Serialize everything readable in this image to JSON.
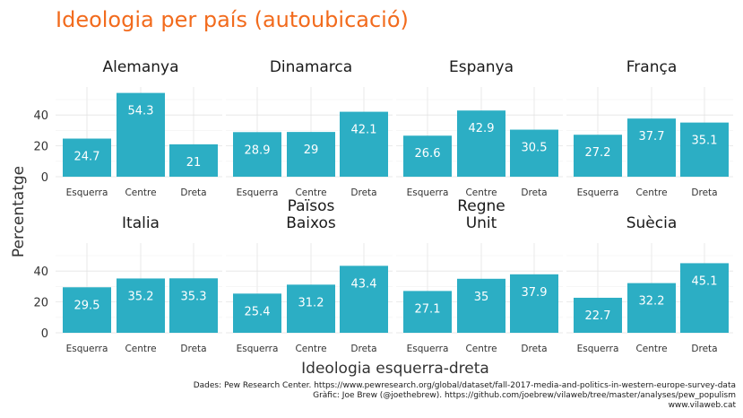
{
  "chart_data": {
    "type": "bar",
    "title": "Ideologia per país (autoubicació)",
    "xlabel": "Ideologia esquerra-dreta",
    "ylabel": "Percentatge",
    "categories": [
      "Esquerra",
      "Centre",
      "Dreta"
    ],
    "y_ticks": [
      0,
      20,
      40
    ],
    "ylim": [
      0,
      57
    ],
    "grid": true,
    "bar_color": "#2caec4",
    "title_color": "#f26b1d",
    "facets": [
      {
        "name": [
          "Alemanya"
        ],
        "values": [
          24.7,
          54.3,
          21
        ]
      },
      {
        "name": [
          "Dinamarca"
        ],
        "values": [
          28.9,
          29,
          42.1
        ]
      },
      {
        "name": [
          "Espanya"
        ],
        "values": [
          26.6,
          42.9,
          30.5
        ]
      },
      {
        "name": [
          "França"
        ],
        "values": [
          27.2,
          37.7,
          35.1
        ]
      },
      {
        "name": [
          "Italia"
        ],
        "values": [
          29.5,
          35.2,
          35.3
        ]
      },
      {
        "name": [
          "Països",
          "Baixos"
        ],
        "values": [
          25.4,
          31.2,
          43.4
        ]
      },
      {
        "name": [
          "Regne",
          "Unit"
        ],
        "values": [
          27.1,
          35,
          37.9
        ]
      },
      {
        "name": [
          "Suècia"
        ],
        "values": [
          22.7,
          32.2,
          45.1
        ]
      }
    ],
    "caption": [
      "Dades: Pew Research Center. https://www.pewresearch.org/global/dataset/fall-2017-media-and-politics-in-western-europe-survey-data",
      "Gràfic: Joe Brew (@joethebrew). https://github.com/joebrew/vilaweb/tree/master/analyses/pew_populism",
      "www.vilaweb.cat"
    ]
  }
}
